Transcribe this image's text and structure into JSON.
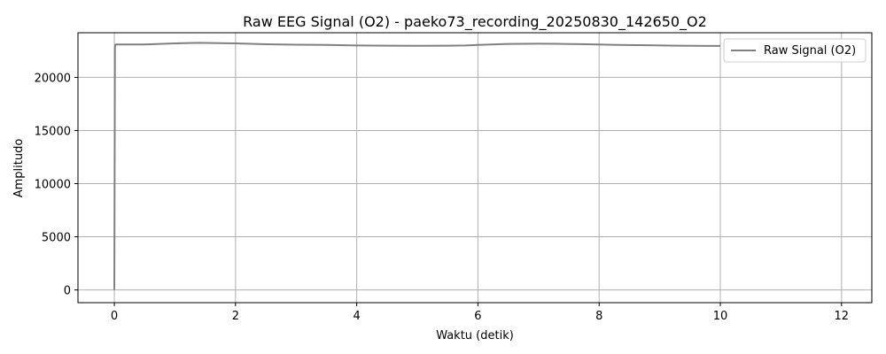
{
  "chart_data": {
    "type": "line",
    "title": "Raw EEG Signal (O2) - paeko73_recording_20250830_142650_O2",
    "xlabel": "Waktu (detik)",
    "ylabel": "Amplitudo",
    "xlim": [
      -0.6,
      12.5
    ],
    "ylim": [
      -1200,
      24200
    ],
    "xticks": [
      0,
      2,
      4,
      6,
      8,
      10,
      12
    ],
    "yticks": [
      0,
      5000,
      10000,
      15000,
      20000
    ],
    "grid": true,
    "legend_position": "top-right",
    "series": [
      {
        "name": "Raw Signal (O2)",
        "color": "#808080",
        "x": [
          0,
          0.01,
          0.02,
          0.03,
          0.05,
          0.5,
          1.0,
          1.4,
          2.0,
          2.5,
          3.0,
          3.5,
          4.0,
          4.5,
          5.0,
          5.5,
          5.8,
          6.0,
          6.5,
          7.0,
          7.3,
          7.8,
          8.3,
          8.8,
          9.3,
          9.8,
          10.0
        ],
        "y": [
          0,
          22800,
          23100,
          23100,
          23100,
          23100,
          23200,
          23250,
          23200,
          23120,
          23080,
          23050,
          23000,
          22980,
          22970,
          22980,
          23000,
          23060,
          23150,
          23170,
          23160,
          23120,
          23060,
          23020,
          22980,
          22960,
          22960
        ]
      }
    ]
  }
}
